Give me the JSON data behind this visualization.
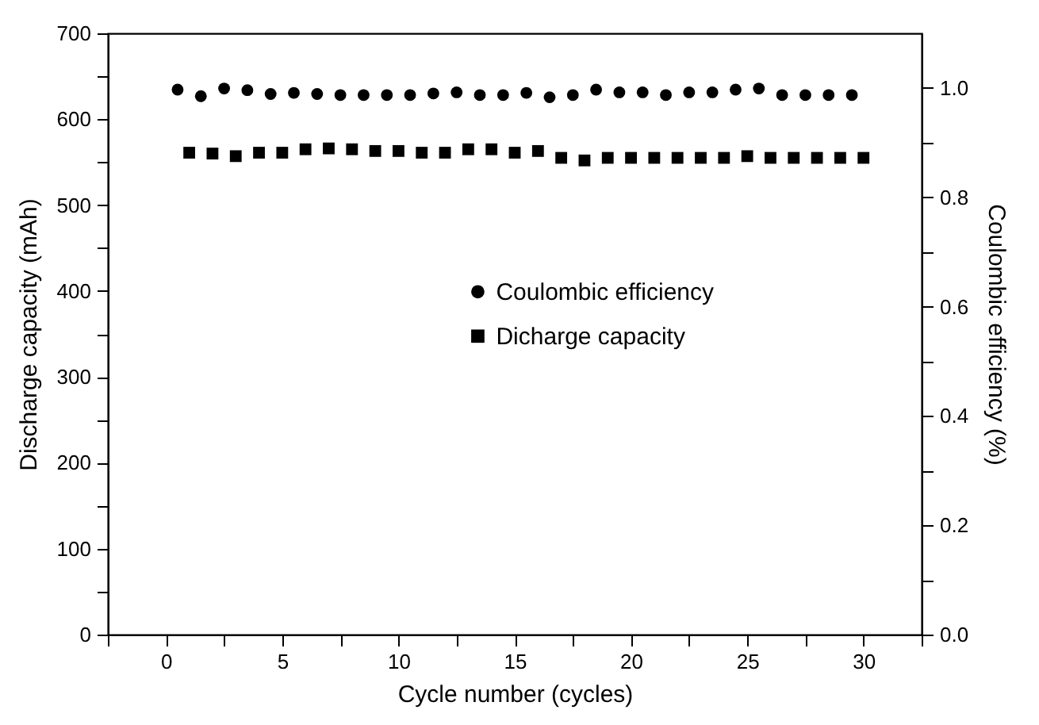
{
  "chart_data": {
    "type": "scatter",
    "xlabel": "Cycle number (cycles)",
    "ylabel": "Discharge capacity (mAh)",
    "y2label": "Coulombic efficiency (%)",
    "xlim": [
      -2.5,
      32.5
    ],
    "xticks": [
      {
        "value": -2.5,
        "label": null
      },
      0,
      {
        "value": 2.5,
        "label": null
      },
      5,
      {
        "value": 7.5,
        "label": null
      },
      10,
      {
        "value": 12.5,
        "label": null
      },
      15,
      {
        "value": 17.5,
        "label": null
      },
      20,
      {
        "value": 22.5,
        "label": null
      },
      25,
      {
        "value": 27.5,
        "label": null
      },
      30,
      {
        "value": 32.5,
        "label": null
      }
    ],
    "ylim": [
      0,
      700
    ],
    "yticks": [
      0,
      {
        "value": 50,
        "label": null
      },
      100,
      {
        "value": 150,
        "label": null
      },
      200,
      {
        "value": 250,
        "label": null
      },
      300,
      {
        "value": 350,
        "label": null
      },
      400,
      {
        "value": 450,
        "label": null
      },
      500,
      {
        "value": 550,
        "label": null
      },
      600,
      {
        "value": 650,
        "label": null
      },
      700
    ],
    "y2lim": [
      0,
      1.1
    ],
    "y2ticks": [
      {
        "value": 0,
        "label": "0.0"
      },
      {
        "value": 0.1,
        "label": null
      },
      0.2,
      {
        "value": 0.3,
        "label": null
      },
      0.4,
      {
        "value": 0.5,
        "label": null
      },
      0.6,
      {
        "value": 0.7,
        "label": null
      },
      0.8,
      {
        "value": 0.9,
        "label": null
      },
      {
        "value": 1,
        "label": "1.0"
      }
    ],
    "legend": "right",
    "grid": false,
    "series": [
      {
        "name": "Coulombic efficiency",
        "color": "#000000",
        "marker": "circle",
        "axis": "y2",
        "x": [
          0.5,
          1.5,
          2.5,
          3.5,
          4.5,
          5.5,
          6.5,
          7.5,
          8.5,
          9.5,
          10.5,
          11.5,
          12.5,
          13.5,
          14.5,
          15.5,
          16.5,
          17.5,
          18.5,
          19.5,
          20.5,
          21.5,
          22.5,
          23.5,
          24.5,
          25.5,
          26.5,
          27.5,
          28.5,
          29.5
        ],
        "values": [
          0.997,
          0.985,
          0.999,
          0.996,
          0.989,
          0.991,
          0.989,
          0.987,
          0.987,
          0.987,
          0.987,
          0.99,
          0.992,
          0.987,
          0.987,
          0.991,
          0.983,
          0.987,
          0.997,
          0.992,
          0.992,
          0.987,
          0.992,
          0.992,
          0.997,
          0.999,
          0.987,
          0.987,
          0.987,
          0.987
        ]
      },
      {
        "name": "Dicharge capacity",
        "color": "#000000",
        "marker": "square",
        "axis": "y",
        "x": [
          1,
          2,
          3,
          4,
          5,
          6,
          7,
          8,
          9,
          10,
          11,
          12,
          13,
          14,
          15,
          16,
          17,
          18,
          19,
          20,
          21,
          22,
          23,
          24,
          25,
          26,
          27,
          28,
          29,
          30
        ],
        "values": [
          561,
          560,
          557,
          561,
          561,
          565,
          566,
          565,
          563,
          563,
          561,
          561,
          565,
          565,
          561,
          563,
          555,
          552,
          555,
          555,
          555,
          555,
          555,
          555,
          557,
          555,
          555,
          555,
          555,
          555
        ]
      }
    ]
  }
}
